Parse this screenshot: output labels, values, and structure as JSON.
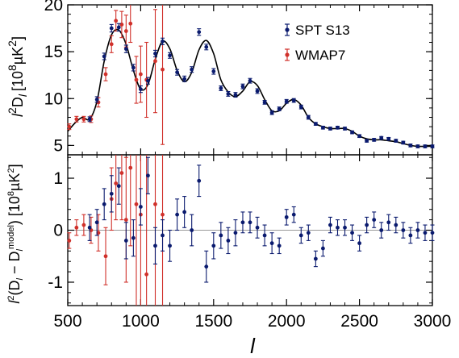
{
  "chart_data": [
    {
      "type": "scatter",
      "panel": "top",
      "ylabel": "l^2 D_l [10^8 µK^2]",
      "ylabel_parts": {
        "pre": "l",
        "sup1": "2",
        "d": "D",
        "sub": "l",
        "units_open": "[10",
        "sup2": "8",
        "units_mid": "µK",
        "sup3": "2",
        "units_close": "]"
      },
      "xlim": [
        500,
        3000
      ],
      "ylim": [
        4,
        20
      ],
      "yticks": [
        5,
        10,
        15,
        20
      ],
      "grid": false,
      "legend": {
        "placement": "top-right",
        "entries": [
          {
            "label": "SPT S13",
            "color": "#0a1a6e"
          },
          {
            "label": "WMAP7",
            "color": "#d0302a"
          }
        ]
      },
      "series": [
        {
          "name": "SPT S13",
          "color": "#0a1a6e",
          "x": [
            650,
            700,
            750,
            800,
            850,
            900,
            950,
            1000,
            1050,
            1100,
            1150,
            1200,
            1250,
            1300,
            1350,
            1400,
            1450,
            1500,
            1550,
            1600,
            1650,
            1700,
            1750,
            1800,
            1850,
            1900,
            1950,
            2000,
            2050,
            2100,
            2150,
            2200,
            2250,
            2300,
            2350,
            2400,
            2450,
            2500,
            2550,
            2600,
            2650,
            2700,
            2750,
            2800,
            2850,
            2900,
            2950,
            3000
          ],
          "y": [
            7.8,
            9.9,
            14.5,
            17.5,
            17.6,
            15.3,
            13.3,
            11.0,
            11.9,
            14.8,
            16.1,
            14.6,
            12.8,
            12.1,
            13.1,
            17.1,
            15.5,
            12.9,
            11.1,
            10.5,
            10.4,
            11.3,
            11.9,
            10.8,
            9.6,
            8.5,
            8.9,
            9.7,
            9.8,
            9.1,
            8.0,
            7.3,
            6.9,
            6.8,
            6.9,
            6.8,
            6.4,
            6.0,
            5.5,
            5.6,
            5.8,
            5.7,
            5.5,
            5.3,
            5.0,
            4.9,
            4.9,
            4.9
          ],
          "err": [
            0.25,
            0.3,
            0.35,
            0.4,
            0.4,
            0.4,
            0.35,
            0.35,
            0.35,
            0.35,
            0.35,
            0.3,
            0.3,
            0.3,
            0.3,
            0.35,
            0.3,
            0.3,
            0.25,
            0.25,
            0.25,
            0.25,
            0.25,
            0.25,
            0.2,
            0.2,
            0.2,
            0.2,
            0.2,
            0.2,
            0.2,
            0.15,
            0.15,
            0.15,
            0.15,
            0.15,
            0.15,
            0.15,
            0.15,
            0.15,
            0.15,
            0.15,
            0.15,
            0.15,
            0.15,
            0.15,
            0.15,
            0.15
          ]
        },
        {
          "name": "WMAP7",
          "color": "#d0302a",
          "x": [
            510,
            560,
            610,
            660,
            710,
            760,
            800,
            830,
            870,
            900,
            930,
            970,
            1000,
            1040,
            1100,
            1150
          ],
          "y": [
            7.0,
            7.8,
            7.8,
            7.8,
            9.6,
            12.6,
            15.8,
            18.3,
            17.9,
            17.2,
            18.0,
            12.0,
            12.6,
            12.0,
            14.0,
            13.1
          ],
          "err": [
            0.3,
            0.3,
            0.3,
            0.35,
            0.5,
            0.7,
            0.9,
            1.1,
            1.4,
            1.7,
            2.0,
            2.5,
            3.0,
            4.0,
            5.5,
            8.0
          ]
        }
      ],
      "model_curve": {
        "x": [
          500,
          550,
          600,
          650,
          700,
          750,
          800,
          850,
          900,
          950,
          1000,
          1050,
          1100,
          1150,
          1200,
          1250,
          1300,
          1350,
          1400,
          1450,
          1500,
          1550,
          1600,
          1650,
          1700,
          1750,
          1800,
          1850,
          1900,
          1950,
          2000,
          2050,
          2100,
          2150,
          2200,
          2250,
          2300,
          2350,
          2400,
          2450,
          2500,
          2550,
          2600,
          2650,
          2700,
          2750,
          2800,
          2850,
          2900,
          2950,
          3000
        ],
        "y": [
          6.5,
          7.4,
          8.0,
          7.8,
          9.7,
          14.0,
          16.8,
          17.3,
          15.8,
          13.0,
          11.0,
          11.5,
          14.2,
          16.1,
          15.3,
          13.0,
          11.8,
          12.8,
          15.2,
          16.2,
          14.8,
          12.0,
          10.7,
          10.2,
          10.8,
          11.8,
          11.4,
          9.9,
          8.7,
          8.7,
          9.5,
          9.9,
          9.3,
          8.0,
          7.3,
          7.0,
          6.8,
          6.8,
          6.8,
          6.5,
          6.0,
          5.7,
          5.6,
          5.6,
          5.5,
          5.4,
          5.2,
          5.0,
          4.9,
          4.9,
          4.9
        ],
        "color": "#000000"
      }
    },
    {
      "type": "scatter",
      "panel": "bottom",
      "xlabel": "l",
      "ylabel": "l^2(D_l − D_l^model) [10^8 µK^2]",
      "ylabel_parts": {
        "pre": "l",
        "sup1": "2",
        "open": "(D",
        "sub1": "l",
        "minus": " − D",
        "sub2": "l",
        "supm": "model",
        "close": ") [10",
        "sup2": "8",
        "units_mid": "µK",
        "sup3": "2",
        "units_close": "]"
      },
      "xlim": [
        500,
        3000
      ],
      "ylim": [
        -1.45,
        1.45
      ],
      "xticks": [
        500,
        1000,
        1500,
        2000,
        2500,
        3000
      ],
      "yticks": [
        -1,
        0,
        1
      ],
      "reference_line": 0,
      "grid": false,
      "series": [
        {
          "name": "SPT S13",
          "color": "#0a1a6e",
          "x": [
            650,
            700,
            750,
            800,
            850,
            900,
            950,
            1000,
            1050,
            1100,
            1150,
            1200,
            1250,
            1300,
            1350,
            1400,
            1450,
            1500,
            1550,
            1600,
            1650,
            1700,
            1750,
            1800,
            1850,
            1900,
            1950,
            2000,
            2050,
            2100,
            2150,
            2200,
            2250,
            2300,
            2350,
            2400,
            2450,
            2500,
            2550,
            2600,
            2650,
            2700,
            2750,
            2800,
            2850,
            2900,
            2950,
            3000
          ],
          "y": [
            0.05,
            0.15,
            0.5,
            0.7,
            0.85,
            -0.2,
            -0.15,
            0.45,
            1.05,
            -0.3,
            -0.1,
            -0.3,
            0.3,
            0.35,
            0.0,
            0.95,
            -0.7,
            -0.3,
            -0.1,
            -0.2,
            -0.05,
            0.15,
            0.15,
            0.05,
            -0.1,
            -0.25,
            -0.3,
            0.25,
            0.3,
            -0.1,
            -0.05,
            -0.55,
            -0.35,
            0.1,
            0.05,
            0.05,
            -0.05,
            -0.25,
            0.1,
            0.2,
            0.0,
            0.15,
            0.1,
            0.0,
            -0.1,
            0.0,
            -0.05,
            -0.05
          ],
          "err": [
            0.25,
            0.25,
            0.3,
            0.35,
            0.35,
            0.35,
            0.35,
            0.35,
            0.35,
            0.35,
            0.3,
            0.3,
            0.3,
            0.3,
            0.3,
            0.3,
            0.3,
            0.25,
            0.25,
            0.25,
            0.25,
            0.2,
            0.2,
            0.2,
            0.2,
            0.2,
            0.15,
            0.15,
            0.15,
            0.15,
            0.15,
            0.15,
            0.15,
            0.15,
            0.15,
            0.15,
            0.15,
            0.15,
            0.15,
            0.15,
            0.15,
            0.15,
            0.15,
            0.15,
            0.15,
            0.15,
            0.15,
            0.15
          ]
        },
        {
          "name": "WMAP7",
          "color": "#d0302a",
          "x": [
            510,
            560,
            610,
            660,
            710,
            760,
            800,
            830,
            870,
            900,
            930,
            970,
            1000,
            1040,
            1100,
            1150
          ],
          "y": [
            -0.2,
            0.05,
            0.1,
            0.0,
            -0.05,
            -0.5,
            0.6,
            0.9,
            1.1,
            0.2,
            1.2,
            0.5,
            0.3,
            -0.85,
            0.5,
            0.3
          ],
          "err": [
            0.15,
            0.15,
            0.2,
            0.25,
            0.35,
            0.55,
            0.6,
            0.7,
            0.9,
            1.2,
            1.5,
            2.0,
            2.5,
            3.5,
            5.0,
            7.0
          ]
        }
      ]
    }
  ]
}
